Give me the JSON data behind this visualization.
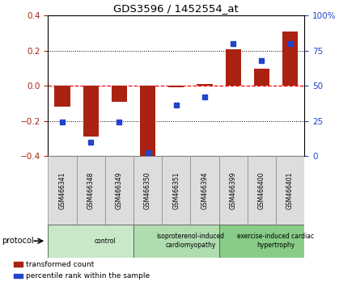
{
  "title": "GDS3596 / 1452554_at",
  "samples": [
    "GSM466341",
    "GSM466348",
    "GSM466349",
    "GSM466350",
    "GSM466351",
    "GSM466394",
    "GSM466399",
    "GSM466400",
    "GSM466401"
  ],
  "transformed_count": [
    -0.12,
    -0.29,
    -0.09,
    -0.41,
    -0.01,
    0.01,
    0.21,
    0.1,
    0.31
  ],
  "percentile_rank": [
    24,
    10,
    24,
    2,
    36,
    42,
    80,
    68,
    80
  ],
  "bar_color": "#aa2211",
  "dot_color": "#2244cc",
  "ylim_left": [
    -0.4,
    0.4
  ],
  "ylim_right": [
    0,
    100
  ],
  "yticks_left": [
    -0.4,
    -0.2,
    0.0,
    0.2,
    0.4
  ],
  "yticks_right": [
    0,
    25,
    50,
    75,
    100
  ],
  "groups": [
    {
      "label": "control",
      "start": 0,
      "end": 3,
      "color": "#c8e8c8"
    },
    {
      "label": "isoproterenol-induced\ncardiomyopathy",
      "start": 3,
      "end": 6,
      "color": "#b0ddb0"
    },
    {
      "label": "exercise-induced cardiac\nhypertrophy",
      "start": 6,
      "end": 9,
      "color": "#88cc88"
    }
  ],
  "protocol_label": "protocol",
  "legend_items": [
    {
      "label": "transformed count",
      "color": "#aa2211"
    },
    {
      "label": "percentile rank within the sample",
      "color": "#2244cc"
    }
  ],
  "sample_box_color": "#dddddd",
  "background_color": "#ffffff"
}
